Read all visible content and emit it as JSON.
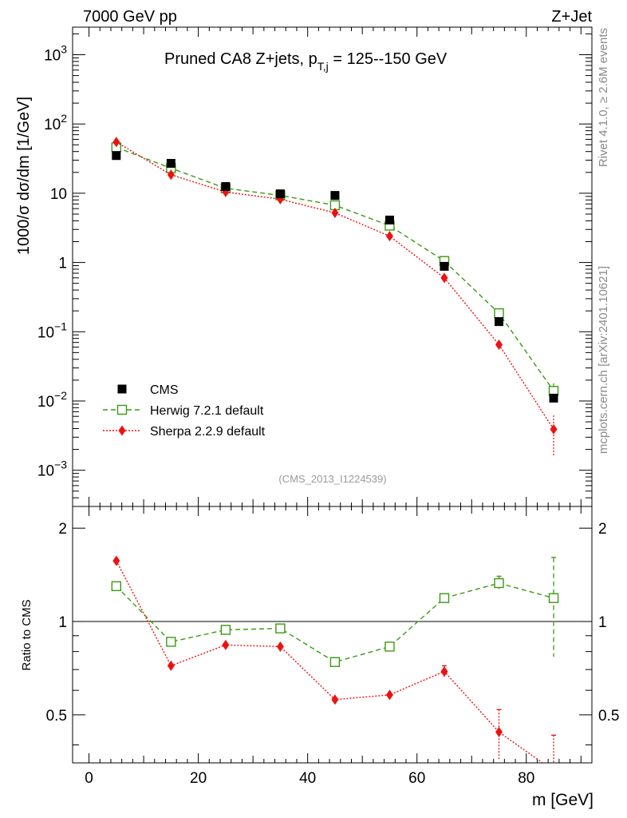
{
  "header": {
    "left_label": "7000 GeV pp",
    "right_label": "Z+Jet"
  },
  "side_labels": {
    "rivet": "Rivet 4.1.0, ≥ 2.6M events",
    "mcplots": "mcplots.cern.ch [arXiv:2401.10621]"
  },
  "chart_data": {
    "type": "scatter",
    "title_main": "Pruned CA8 Z+jets, p",
    "title_sub": "T,j",
    "title_rest": " = 125--150 GeV",
    "analysis_label": "(CMS_2013_I1224539)",
    "xlabel": "m [GeV]",
    "ylabel_main": "1000/σ  dσ/dm [1/GeV]",
    "ylabel_ratio": "Ratio to CMS",
    "xlim": [
      -3,
      92
    ],
    "ylim_main": [
      0.0003,
      2500
    ],
    "ylim_ratio": [
      0.35,
      2.35
    ],
    "yscale_main": "log",
    "yscale_ratio": "log",
    "x_ticks": [
      0,
      20,
      40,
      60,
      80
    ],
    "x_tick_labels": [
      "0",
      "20",
      "40",
      "60",
      "80"
    ],
    "main_y_tick_labels": [
      {
        "value": 1000,
        "base": "10",
        "exp": "3"
      },
      {
        "value": 100,
        "base": "10",
        "exp": "2"
      },
      {
        "value": 10,
        "base": "10",
        "exp": ""
      },
      {
        "value": 1,
        "base": "1",
        "exp": ""
      },
      {
        "value": 0.1,
        "base": "10",
        "exp": "−1"
      },
      {
        "value": 0.01,
        "base": "10",
        "exp": "−2"
      },
      {
        "value": 0.001,
        "base": "10",
        "exp": "−3"
      }
    ],
    "ratio_y_tick_labels": [
      {
        "value": 2,
        "label": "2"
      },
      {
        "value": 1,
        "label": "1"
      },
      {
        "value": 0.5,
        "label": "0.5"
      }
    ],
    "x": [
      5,
      15,
      25,
      35,
      45,
      55,
      65,
      75,
      85
    ],
    "series": [
      {
        "name": "CMS",
        "marker": "filled-square",
        "color": "#000000",
        "values": [
          35,
          27,
          12.5,
          9.8,
          9.3,
          4.1,
          0.88,
          0.14,
          0.011
        ],
        "errors": [
          0,
          0,
          0,
          0,
          0,
          0,
          0,
          0,
          0
        ]
      },
      {
        "name": "Herwig 7.2.1 default",
        "marker": "open-square",
        "line": "dashed",
        "color": "#3a9a12",
        "values": [
          46,
          23,
          11.8,
          9.3,
          6.7,
          3.4,
          1.05,
          0.185,
          0.014
        ],
        "errors": [
          0,
          0,
          0,
          0,
          0,
          0,
          0,
          0.008,
          0.004
        ],
        "ratio": [
          1.3,
          0.86,
          0.94,
          0.95,
          0.74,
          0.83,
          1.19,
          1.33,
          1.19
        ],
        "ratio_errors": [
          0,
          0,
          0,
          0,
          0,
          0,
          0,
          0.07,
          0.42
        ]
      },
      {
        "name": "Sherpa 2.2.9 default",
        "marker": "filled-diamond",
        "line": "dotted",
        "color": "#ee1111",
        "values": [
          55,
          18.5,
          10.4,
          8.2,
          5.2,
          2.4,
          0.6,
          0.065,
          0.0039
        ],
        "errors": [
          0,
          0,
          0,
          0,
          0,
          0,
          0,
          0.006,
          0.0023
        ],
        "ratio": [
          1.57,
          0.72,
          0.84,
          0.83,
          0.56,
          0.58,
          0.69,
          0.44,
          0.33
        ],
        "ratio_errors": [
          0,
          0,
          0,
          0,
          0,
          0,
          0.03,
          0.08,
          0.1
        ]
      }
    ]
  }
}
